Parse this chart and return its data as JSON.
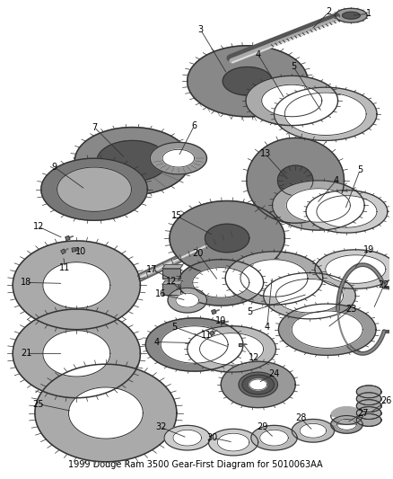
{
  "title": "1999 Dodge Ram 3500 Gear-First Diagram for 5010063AA",
  "background_color": "#ffffff",
  "fig_width": 4.38,
  "fig_height": 5.33,
  "dpi": 100,
  "title_fontsize": 7,
  "title_color": "#000000",
  "gear_color": "#333333",
  "gear_fill_dark": "#888888",
  "gear_fill_mid": "#aaaaaa",
  "gear_fill_light": "#cccccc",
  "gear_fill_white": "#ffffff"
}
